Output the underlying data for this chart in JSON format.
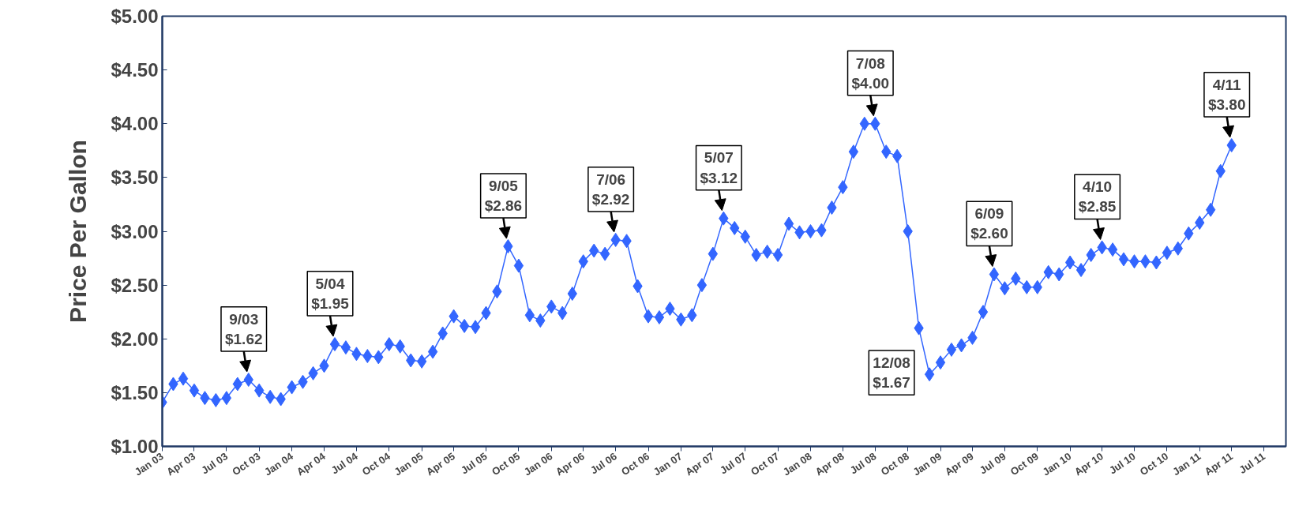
{
  "chart_data": {
    "type": "line",
    "ylabel": "Price Per Gallon",
    "x": [
      "2003-01",
      "2003-02",
      "2003-03",
      "2003-04",
      "2003-05",
      "2003-06",
      "2003-07",
      "2003-08",
      "2003-09",
      "2003-10",
      "2003-11",
      "2003-12",
      "2004-01",
      "2004-02",
      "2004-03",
      "2004-04",
      "2004-05",
      "2004-06",
      "2004-07",
      "2004-08",
      "2004-09",
      "2004-10",
      "2004-11",
      "2004-12",
      "2005-01",
      "2005-02",
      "2005-03",
      "2005-04",
      "2005-05",
      "2005-06",
      "2005-07",
      "2005-08",
      "2005-09",
      "2005-10",
      "2005-11",
      "2005-12",
      "2006-01",
      "2006-02",
      "2006-03",
      "2006-04",
      "2006-05",
      "2006-06",
      "2006-07",
      "2006-08",
      "2006-09",
      "2006-10",
      "2006-11",
      "2006-12",
      "2007-01",
      "2007-02",
      "2007-03",
      "2007-04",
      "2007-05",
      "2007-06",
      "2007-07",
      "2007-08",
      "2007-09",
      "2007-10",
      "2007-11",
      "2007-12",
      "2008-01",
      "2008-02",
      "2008-03",
      "2008-04",
      "2008-05",
      "2008-06",
      "2008-07",
      "2008-08",
      "2008-09",
      "2008-10",
      "2008-11",
      "2008-12",
      "2009-01",
      "2009-02",
      "2009-03",
      "2009-04",
      "2009-05",
      "2009-06",
      "2009-07",
      "2009-08",
      "2009-09",
      "2009-10",
      "2009-11",
      "2009-12",
      "2010-01",
      "2010-02",
      "2010-03",
      "2010-04",
      "2010-05",
      "2010-06",
      "2010-07",
      "2010-08",
      "2010-09",
      "2010-10",
      "2010-11",
      "2010-12",
      "2011-01",
      "2011-02",
      "2011-03",
      "2011-04"
    ],
    "series": [
      {
        "color": "#3366ff",
        "values": [
          1.41,
          1.58,
          1.63,
          1.52,
          1.45,
          1.43,
          1.45,
          1.58,
          1.62,
          1.52,
          1.46,
          1.44,
          1.55,
          1.6,
          1.68,
          1.75,
          1.95,
          1.92,
          1.86,
          1.84,
          1.83,
          1.95,
          1.93,
          1.8,
          1.79,
          1.88,
          2.05,
          2.21,
          2.12,
          2.11,
          2.24,
          2.44,
          2.86,
          2.68,
          2.22,
          2.17,
          2.3,
          2.24,
          2.42,
          2.72,
          2.82,
          2.79,
          2.92,
          2.91,
          2.49,
          2.21,
          2.2,
          2.28,
          2.18,
          2.22,
          2.5,
          2.79,
          3.12,
          3.03,
          2.95,
          2.78,
          2.81,
          2.78,
          3.07,
          2.99,
          3.0,
          3.01,
          3.22,
          3.41,
          3.74,
          4.0,
          4.0,
          3.74,
          3.7,
          3.0,
          2.1,
          1.67,
          1.78,
          1.9,
          1.94,
          2.01,
          2.25,
          2.6,
          2.47,
          2.56,
          2.48,
          2.48,
          2.62,
          2.6,
          2.71,
          2.64,
          2.78,
          2.85,
          2.83,
          2.74,
          2.72,
          2.72,
          2.71,
          2.8,
          2.84,
          2.98,
          3.08,
          3.2,
          3.56,
          3.8
        ]
      }
    ],
    "marker": "diamond",
    "xlim": [
      "2003-01",
      "2011-09"
    ],
    "xticks": [
      {
        "value": "2003-01",
        "label": "Jan 03"
      },
      {
        "value": "2003-04",
        "label": "Apr 03"
      },
      {
        "value": "2003-07",
        "label": "Jul 03"
      },
      {
        "value": "2003-10",
        "label": "Oct 03"
      },
      {
        "value": "2004-01",
        "label": "Jan 04"
      },
      {
        "value": "2004-04",
        "label": "Apr 04"
      },
      {
        "value": "2004-07",
        "label": "Jul 04"
      },
      {
        "value": "2004-10",
        "label": "Oct 04"
      },
      {
        "value": "2005-01",
        "label": "Jan 05"
      },
      {
        "value": "2005-04",
        "label": "Apr 05"
      },
      {
        "value": "2005-07",
        "label": "Jul 05"
      },
      {
        "value": "2005-10",
        "label": "Oct 05"
      },
      {
        "value": "2006-01",
        "label": "Jan 06"
      },
      {
        "value": "2006-04",
        "label": "Apr 06"
      },
      {
        "value": "2006-07",
        "label": "Jul 06"
      },
      {
        "value": "2006-10",
        "label": "Oct 06"
      },
      {
        "value": "2007-01",
        "label": "Jan 07"
      },
      {
        "value": "2007-04",
        "label": "Apr 07"
      },
      {
        "value": "2007-07",
        "label": "Jul 07"
      },
      {
        "value": "2007-10",
        "label": "Oct 07"
      },
      {
        "value": "2008-01",
        "label": "Jan 08"
      },
      {
        "value": "2008-04",
        "label": "Apr 08"
      },
      {
        "value": "2008-07",
        "label": "Jul 08"
      },
      {
        "value": "2008-10",
        "label": "Oct 08"
      },
      {
        "value": "2009-01",
        "label": "Jan 09"
      },
      {
        "value": "2009-04",
        "label": "Apr 09"
      },
      {
        "value": "2009-07",
        "label": "Jul 09"
      },
      {
        "value": "2009-10",
        "label": "Oct 09"
      },
      {
        "value": "2010-01",
        "label": "Jan 10"
      },
      {
        "value": "2010-04",
        "label": "Apr 10"
      },
      {
        "value": "2010-07",
        "label": "Jul 10"
      },
      {
        "value": "2010-10",
        "label": "Oct 10"
      },
      {
        "value": "2011-01",
        "label": "Jan 11"
      },
      {
        "value": "2011-04",
        "label": "Apr 11"
      },
      {
        "value": "2011-07",
        "label": "Jul 11"
      }
    ],
    "ylim": [
      1,
      5
    ],
    "yticks": [
      {
        "value": 1,
        "label": "$1.00"
      },
      {
        "value": 1.5,
        "label": "$1.50"
      },
      {
        "value": 2,
        "label": "$2.00"
      },
      {
        "value": 2.5,
        "label": "$2.50"
      },
      {
        "value": 3,
        "label": "$3.00"
      },
      {
        "value": 3.5,
        "label": "$3.50"
      },
      {
        "value": 4,
        "label": "$4.00"
      },
      {
        "value": 4.5,
        "label": "$4.50"
      },
      {
        "value": 5,
        "label": "$5.00"
      }
    ],
    "grid": false,
    "annotations": [
      {
        "text": "9/03\n$1.62",
        "x": "2003-09",
        "y": 1.62
      },
      {
        "text": "5/04\n$1.95",
        "x": "2004-05",
        "y": 1.95
      },
      {
        "text": "9/05\n$2.86",
        "x": "2005-09",
        "y": 2.86
      },
      {
        "text": "7/06\n$2.92",
        "x": "2006-07",
        "y": 2.92
      },
      {
        "text": "5/07\n$3.12",
        "x": "2007-05",
        "y": 3.12
      },
      {
        "text": "7/08\n$4.00",
        "x": "2008-07",
        "y": 4.0
      },
      {
        "text": "12/08\n$1.67",
        "x": "2008-12",
        "y": 1.67
      },
      {
        "text": "6/09\n$2.60",
        "x": "2009-06",
        "y": 2.6
      },
      {
        "text": "4/10\n$2.85",
        "x": "2010-04",
        "y": 2.85
      },
      {
        "text": "4/11\n$3.80",
        "x": "2011-04",
        "y": 3.8
      }
    ]
  }
}
